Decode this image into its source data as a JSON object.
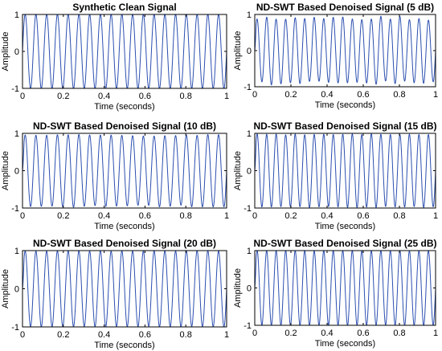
{
  "figure": {
    "line_color": "#2b4fb0",
    "axis_color": "#000000",
    "background": "#ffffff"
  },
  "chart_data": [
    {
      "type": "line",
      "title": "Synthetic Clean Signal",
      "xlabel": "Time (seconds)",
      "ylabel": "Amplitude",
      "xlim": [
        0,
        1
      ],
      "ylim": [
        -1,
        1
      ],
      "xticks": [
        "0",
        "0.2",
        "0.4",
        "0.6",
        "0.8",
        "1"
      ],
      "yticks": [
        "-1",
        "0",
        "1"
      ],
      "grid": false,
      "signal": {
        "frequency_hz": 19,
        "amplitude": 1,
        "noise": 0,
        "onset": false
      }
    },
    {
      "type": "line",
      "title": "ND-SWT Based Denoised Signal (5 dB)",
      "xlabel": "Time (seconds)",
      "ylabel": "Amplitude",
      "xlim": [
        0,
        1
      ],
      "ylim": [
        -1,
        1
      ],
      "xticks": [
        "0",
        "0.2",
        "0.4",
        "0.6",
        "0.8",
        "1"
      ],
      "yticks": [
        "-1",
        "0",
        "1"
      ],
      "grid": false,
      "signal": {
        "frequency_hz": 19,
        "amplitude": 0.95,
        "noise": 0.12,
        "onset": true
      }
    },
    {
      "type": "line",
      "title": "ND-SWT Based Denoised Signal (10 dB)",
      "xlabel": "Time (seconds)",
      "ylabel": "Amplitude",
      "xlim": [
        0,
        1
      ],
      "ylim": [
        -1,
        1
      ],
      "xticks": [
        "0",
        "0.2",
        "0.4",
        "0.6",
        "0.8",
        "1"
      ],
      "yticks": [
        "-1",
        "0",
        "1"
      ],
      "grid": false,
      "signal": {
        "frequency_hz": 19,
        "amplitude": 0.98,
        "noise": 0.06,
        "onset": true
      }
    },
    {
      "type": "line",
      "title": "ND-SWT Based Denoised Signal (15 dB)",
      "xlabel": "Time (seconds)",
      "ylabel": "Amplitude",
      "xlim": [
        0,
        1
      ],
      "ylim": [
        -1,
        1
      ],
      "xticks": [
        "0",
        "0.2",
        "0.4",
        "0.6",
        "0.8",
        "1"
      ],
      "yticks": [
        "-1",
        "0",
        "1"
      ],
      "grid": false,
      "signal": {
        "frequency_hz": 19,
        "amplitude": 0.99,
        "noise": 0.035,
        "onset": true
      }
    },
    {
      "type": "line",
      "title": "ND-SWT Based Denoised Signal (20 dB)",
      "xlabel": "Time (seconds)",
      "ylabel": "Amplitude",
      "xlim": [
        0,
        1
      ],
      "ylim": [
        -1,
        1
      ],
      "xticks": [
        "0",
        "0.2",
        "0.4",
        "0.6",
        "0.8",
        "1"
      ],
      "yticks": [
        "-1",
        "0",
        "1"
      ],
      "grid": false,
      "signal": {
        "frequency_hz": 19,
        "amplitude": 1.0,
        "noise": 0.02,
        "onset": true
      }
    },
    {
      "type": "line",
      "title": "ND-SWT Based Denoised Signal (25 dB)",
      "xlabel": "Time (seconds)",
      "ylabel": "Amplitude",
      "xlim": [
        0,
        1
      ],
      "ylim": [
        -1,
        1
      ],
      "xticks": [
        "0",
        "0.2",
        "0.4",
        "0.6",
        "0.8",
        "1"
      ],
      "yticks": [
        "-1",
        "0",
        "1"
      ],
      "grid": false,
      "signal": {
        "frequency_hz": 19,
        "amplitude": 1.0,
        "noise": 0.01,
        "onset": true
      }
    }
  ]
}
